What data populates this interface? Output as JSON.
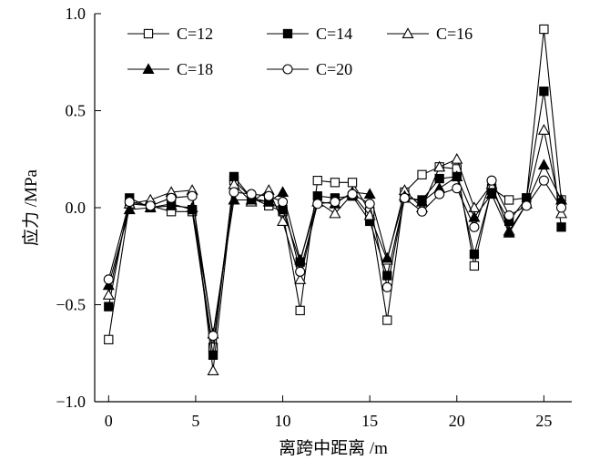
{
  "chart_data": {
    "type": "line",
    "title": "",
    "xlabel": "离跨中距离 /m",
    "ylabel": "应力 /MPa",
    "xlim": [
      -0.8,
      26.6
    ],
    "ylim": [
      -1.0,
      1.0
    ],
    "xticks": [
      0,
      5,
      10,
      15,
      20,
      25
    ],
    "xtick_labels": [
      "0",
      "5",
      "10",
      "15",
      "20",
      "25"
    ],
    "yticks": [
      -1.0,
      -0.5,
      0.0,
      0.5,
      1.0
    ],
    "ytick_labels": [
      "−1.0",
      "−0.5",
      "0.0",
      "0.5",
      "1.0"
    ],
    "grid": false,
    "legend_position": "top",
    "x": [
      0,
      1.2,
      2.4,
      3.6,
      4.8,
      6,
      7.2,
      8.2,
      9.2,
      10,
      11,
      12,
      13,
      14,
      15,
      16,
      17,
      18,
      19,
      20,
      21,
      22,
      23,
      24,
      25,
      26
    ],
    "series": [
      {
        "name": "C=12",
        "marker": "square-open",
        "values": [
          -0.68,
          0.02,
          0.01,
          -0.02,
          -0.02,
          -0.72,
          0.14,
          0.05,
          0.01,
          -0.02,
          -0.53,
          0.14,
          0.13,
          0.13,
          -0.02,
          -0.58,
          0.08,
          0.17,
          0.21,
          0.2,
          -0.3,
          0.1,
          0.04,
          0.05,
          0.92,
          0.04
        ]
      },
      {
        "name": "C=14",
        "marker": "square-filled",
        "values": [
          -0.51,
          0.05,
          0.0,
          0.02,
          -0.01,
          -0.76,
          0.16,
          0.05,
          0.03,
          -0.01,
          -0.28,
          0.06,
          0.05,
          0.06,
          -0.07,
          -0.35,
          0.05,
          0.04,
          0.15,
          0.16,
          -0.24,
          0.09,
          -0.07,
          0.05,
          0.6,
          -0.1
        ]
      },
      {
        "name": "C=16",
        "marker": "triangle-open",
        "values": [
          -0.45,
          0.02,
          0.04,
          0.08,
          0.09,
          -0.84,
          0.12,
          0.03,
          0.09,
          -0.07,
          -0.37,
          0.03,
          -0.03,
          0.07,
          -0.04,
          -0.27,
          0.09,
          0.0,
          0.21,
          0.25,
          0.0,
          0.12,
          -0.12,
          0.02,
          0.4,
          -0.03
        ]
      },
      {
        "name": "C=18",
        "marker": "triangle-filled",
        "values": [
          -0.4,
          -0.01,
          0.0,
          0.01,
          0.0,
          -0.65,
          0.04,
          0.04,
          0.03,
          0.08,
          -0.27,
          0.03,
          0.02,
          0.08,
          0.07,
          -0.26,
          0.06,
          0.03,
          0.1,
          0.16,
          -0.05,
          0.07,
          -0.13,
          0.02,
          0.22,
          0.04
        ]
      },
      {
        "name": "C=20",
        "marker": "circle-open",
        "values": [
          -0.37,
          0.03,
          0.01,
          0.05,
          0.06,
          -0.66,
          0.08,
          0.07,
          0.06,
          0.03,
          -0.33,
          0.02,
          0.03,
          0.07,
          0.02,
          -0.41,
          0.05,
          -0.02,
          0.07,
          0.1,
          -0.1,
          0.14,
          -0.04,
          0.01,
          0.14,
          0.0
        ]
      }
    ]
  }
}
